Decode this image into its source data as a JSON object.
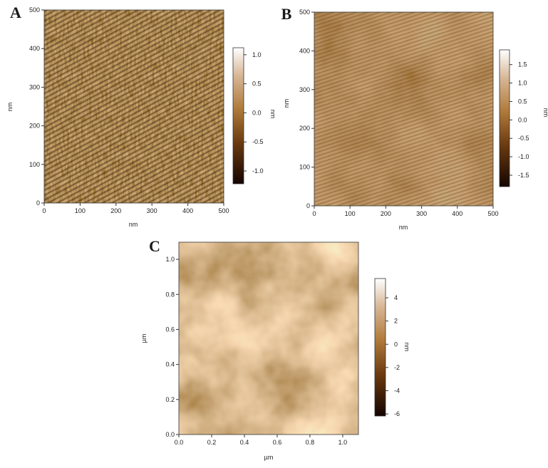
{
  "panels": [
    {
      "label": "A",
      "xlabel": "nm",
      "ylabel": "nm",
      "xlim": [
        0,
        500
      ],
      "xticks": [
        0,
        100,
        200,
        300,
        400,
        500
      ],
      "ylim": [
        0,
        500
      ],
      "yticks": [
        0,
        100,
        200,
        300,
        400,
        500
      ],
      "colorbar": {
        "label": "nm",
        "lim": [
          -1.22,
          1.12
        ],
        "ticks": [
          {
            "value": 1,
            "label": "1.0"
          },
          0.5,
          {
            "value": 0,
            "label": "0.0"
          },
          -0.5,
          {
            "value": -1,
            "label": "-1.0"
          }
        ]
      }
    },
    {
      "label": "B",
      "xlabel": "nm",
      "ylabel": "nm",
      "xlim": [
        0,
        500
      ],
      "xticks": [
        0,
        100,
        200,
        300,
        400,
        500
      ],
      "ylim": [
        0,
        500
      ],
      "yticks": [
        0,
        100,
        200,
        300,
        400,
        500
      ],
      "colorbar": {
        "label": "nm",
        "lim": [
          -1.81,
          1.9
        ],
        "ticks": [
          1.5,
          {
            "value": 1,
            "label": "1.0"
          },
          0.5,
          {
            "value": 0,
            "label": "0.0"
          },
          -0.5,
          {
            "value": -1,
            "label": "-1.0"
          },
          -1.5
        ]
      }
    },
    {
      "label": "C",
      "xlabel": "µm",
      "ylabel": "µm",
      "xlim": [
        0,
        1.096
      ],
      "xticks": [
        {
          "value": 0,
          "label": "0.0"
        },
        0.2,
        0.4,
        0.6,
        0.8,
        {
          "value": 1,
          "label": "1.0"
        }
      ],
      "ylim": [
        0,
        1.098
      ],
      "yticks": [
        {
          "value": 0,
          "label": "0.0"
        },
        0.2,
        0.4,
        0.6,
        0.8,
        {
          "value": 1,
          "label": "1.0"
        }
      ],
      "colorbar": {
        "label": "nm",
        "lim": [
          -6.18,
          5.66
        ],
        "ticks": [
          4,
          2,
          0,
          -2,
          -4,
          -6
        ]
      }
    }
  ]
}
